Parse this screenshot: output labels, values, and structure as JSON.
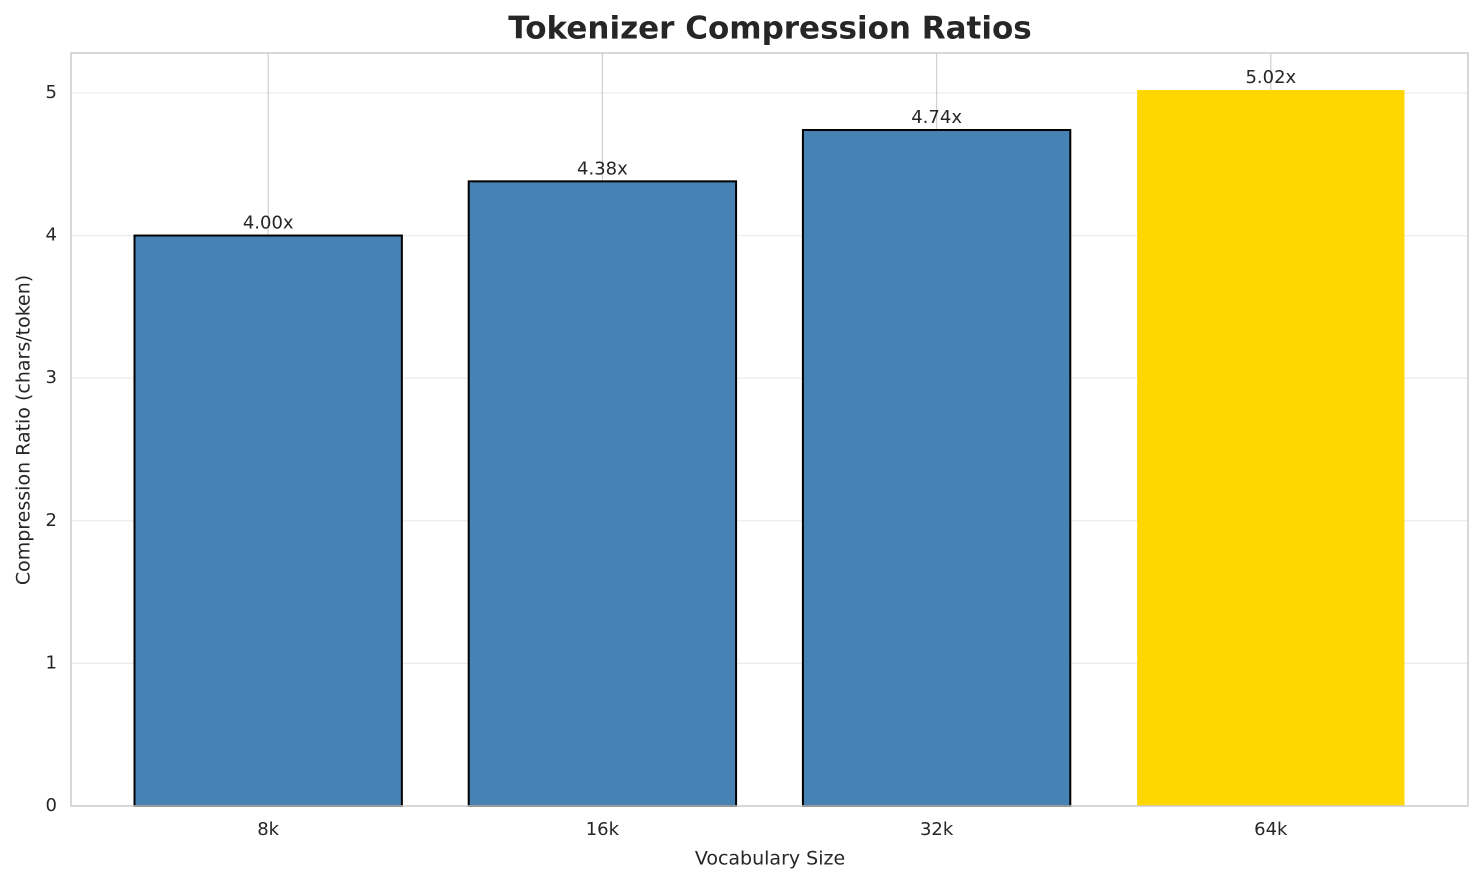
{
  "chart_data": {
    "type": "bar",
    "title": "Tokenizer Compression Ratios",
    "xlabel": "Vocabulary Size",
    "ylabel": "Compression Ratio (chars/token)",
    "categories": [
      "8k",
      "16k",
      "32k",
      "64k"
    ],
    "values": [
      4.0,
      4.38,
      4.74,
      5.02
    ],
    "value_labels": [
      "4.00x",
      "4.38x",
      "4.74x",
      "5.02x"
    ],
    "colors": [
      "#4682b4",
      "#4682b4",
      "#4682b4",
      "#ffd700"
    ],
    "edge_colors": [
      "#000000",
      "#000000",
      "#000000",
      "none"
    ],
    "ylim": [
      0,
      5.28
    ],
    "yticks": [
      0,
      1,
      2,
      3,
      4,
      5
    ],
    "grid": true
  }
}
